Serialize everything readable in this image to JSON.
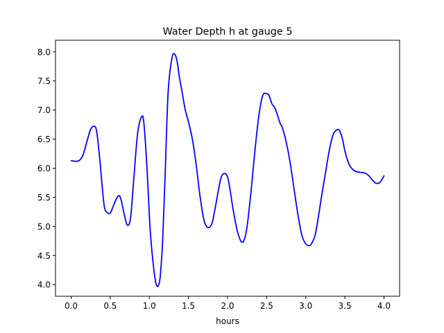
{
  "chart_data": {
    "type": "line",
    "title": "Water Depth h at gauge 5",
    "xlabel": "hours",
    "ylabel": "",
    "xlim": [
      -0.2,
      4.2
    ],
    "ylim": [
      3.8,
      8.2
    ],
    "grid": false,
    "x_ticks": [
      0.0,
      0.5,
      1.0,
      1.5,
      2.0,
      2.5,
      3.0,
      3.5,
      4.0
    ],
    "x_tick_labels": [
      "0.0",
      "0.5",
      "1.0",
      "1.5",
      "2.0",
      "2.5",
      "3.0",
      "3.5",
      "4.0"
    ],
    "y_ticks": [
      4.0,
      4.5,
      5.0,
      5.5,
      6.0,
      6.5,
      7.0,
      7.5,
      8.0
    ],
    "y_tick_labels": [
      "4.0",
      "4.5",
      "5.0",
      "5.5",
      "6.0",
      "6.5",
      "7.0",
      "7.5",
      "8.0"
    ],
    "series": [
      {
        "color": "#0000ff",
        "x": [
          0.0,
          0.05,
          0.1,
          0.15,
          0.2,
          0.25,
          0.3,
          0.33,
          0.37,
          0.42,
          0.46,
          0.5,
          0.53,
          0.57,
          0.61,
          0.64,
          0.68,
          0.72,
          0.76,
          0.8,
          0.85,
          0.9,
          0.93,
          0.97,
          1.01,
          1.05,
          1.08,
          1.1,
          1.12,
          1.14,
          1.17,
          1.2,
          1.24,
          1.29,
          1.33,
          1.36,
          1.38,
          1.42,
          1.46,
          1.5,
          1.55,
          1.6,
          1.65,
          1.7,
          1.75,
          1.8,
          1.84,
          1.88,
          1.92,
          1.96,
          2.0,
          2.03,
          2.07,
          2.12,
          2.17,
          2.21,
          2.25,
          2.3,
          2.35,
          2.4,
          2.45,
          2.5,
          2.53,
          2.57,
          2.6,
          2.63,
          2.67,
          2.7,
          2.75,
          2.8,
          2.85,
          2.9,
          2.95,
          3.0,
          3.05,
          3.08,
          3.12,
          3.16,
          3.2,
          3.25,
          3.3,
          3.35,
          3.4,
          3.43,
          3.47,
          3.5,
          3.55,
          3.6,
          3.65,
          3.7,
          3.75,
          3.8,
          3.85,
          3.9,
          3.95,
          4.0
        ],
        "y": [
          6.13,
          6.12,
          6.13,
          6.22,
          6.45,
          6.67,
          6.72,
          6.6,
          6.1,
          5.38,
          5.24,
          5.23,
          5.32,
          5.45,
          5.53,
          5.45,
          5.2,
          5.02,
          5.15,
          5.8,
          6.6,
          6.88,
          6.78,
          6.0,
          4.95,
          4.35,
          4.05,
          3.97,
          4.0,
          4.15,
          4.75,
          5.8,
          7.3,
          7.9,
          7.95,
          7.8,
          7.6,
          7.3,
          7.0,
          6.8,
          6.5,
          6.05,
          5.5,
          5.1,
          4.98,
          5.05,
          5.3,
          5.6,
          5.85,
          5.91,
          5.85,
          5.65,
          5.3,
          4.95,
          4.75,
          4.76,
          5.0,
          5.6,
          6.3,
          6.9,
          7.25,
          7.28,
          7.25,
          7.1,
          7.05,
          6.95,
          6.78,
          6.7,
          6.45,
          6.1,
          5.65,
          5.2,
          4.85,
          4.7,
          4.67,
          4.72,
          4.85,
          5.15,
          5.5,
          5.9,
          6.3,
          6.58,
          6.66,
          6.65,
          6.5,
          6.3,
          6.08,
          5.98,
          5.94,
          5.93,
          5.92,
          5.88,
          5.8,
          5.74,
          5.76,
          5.87
        ]
      }
    ]
  }
}
